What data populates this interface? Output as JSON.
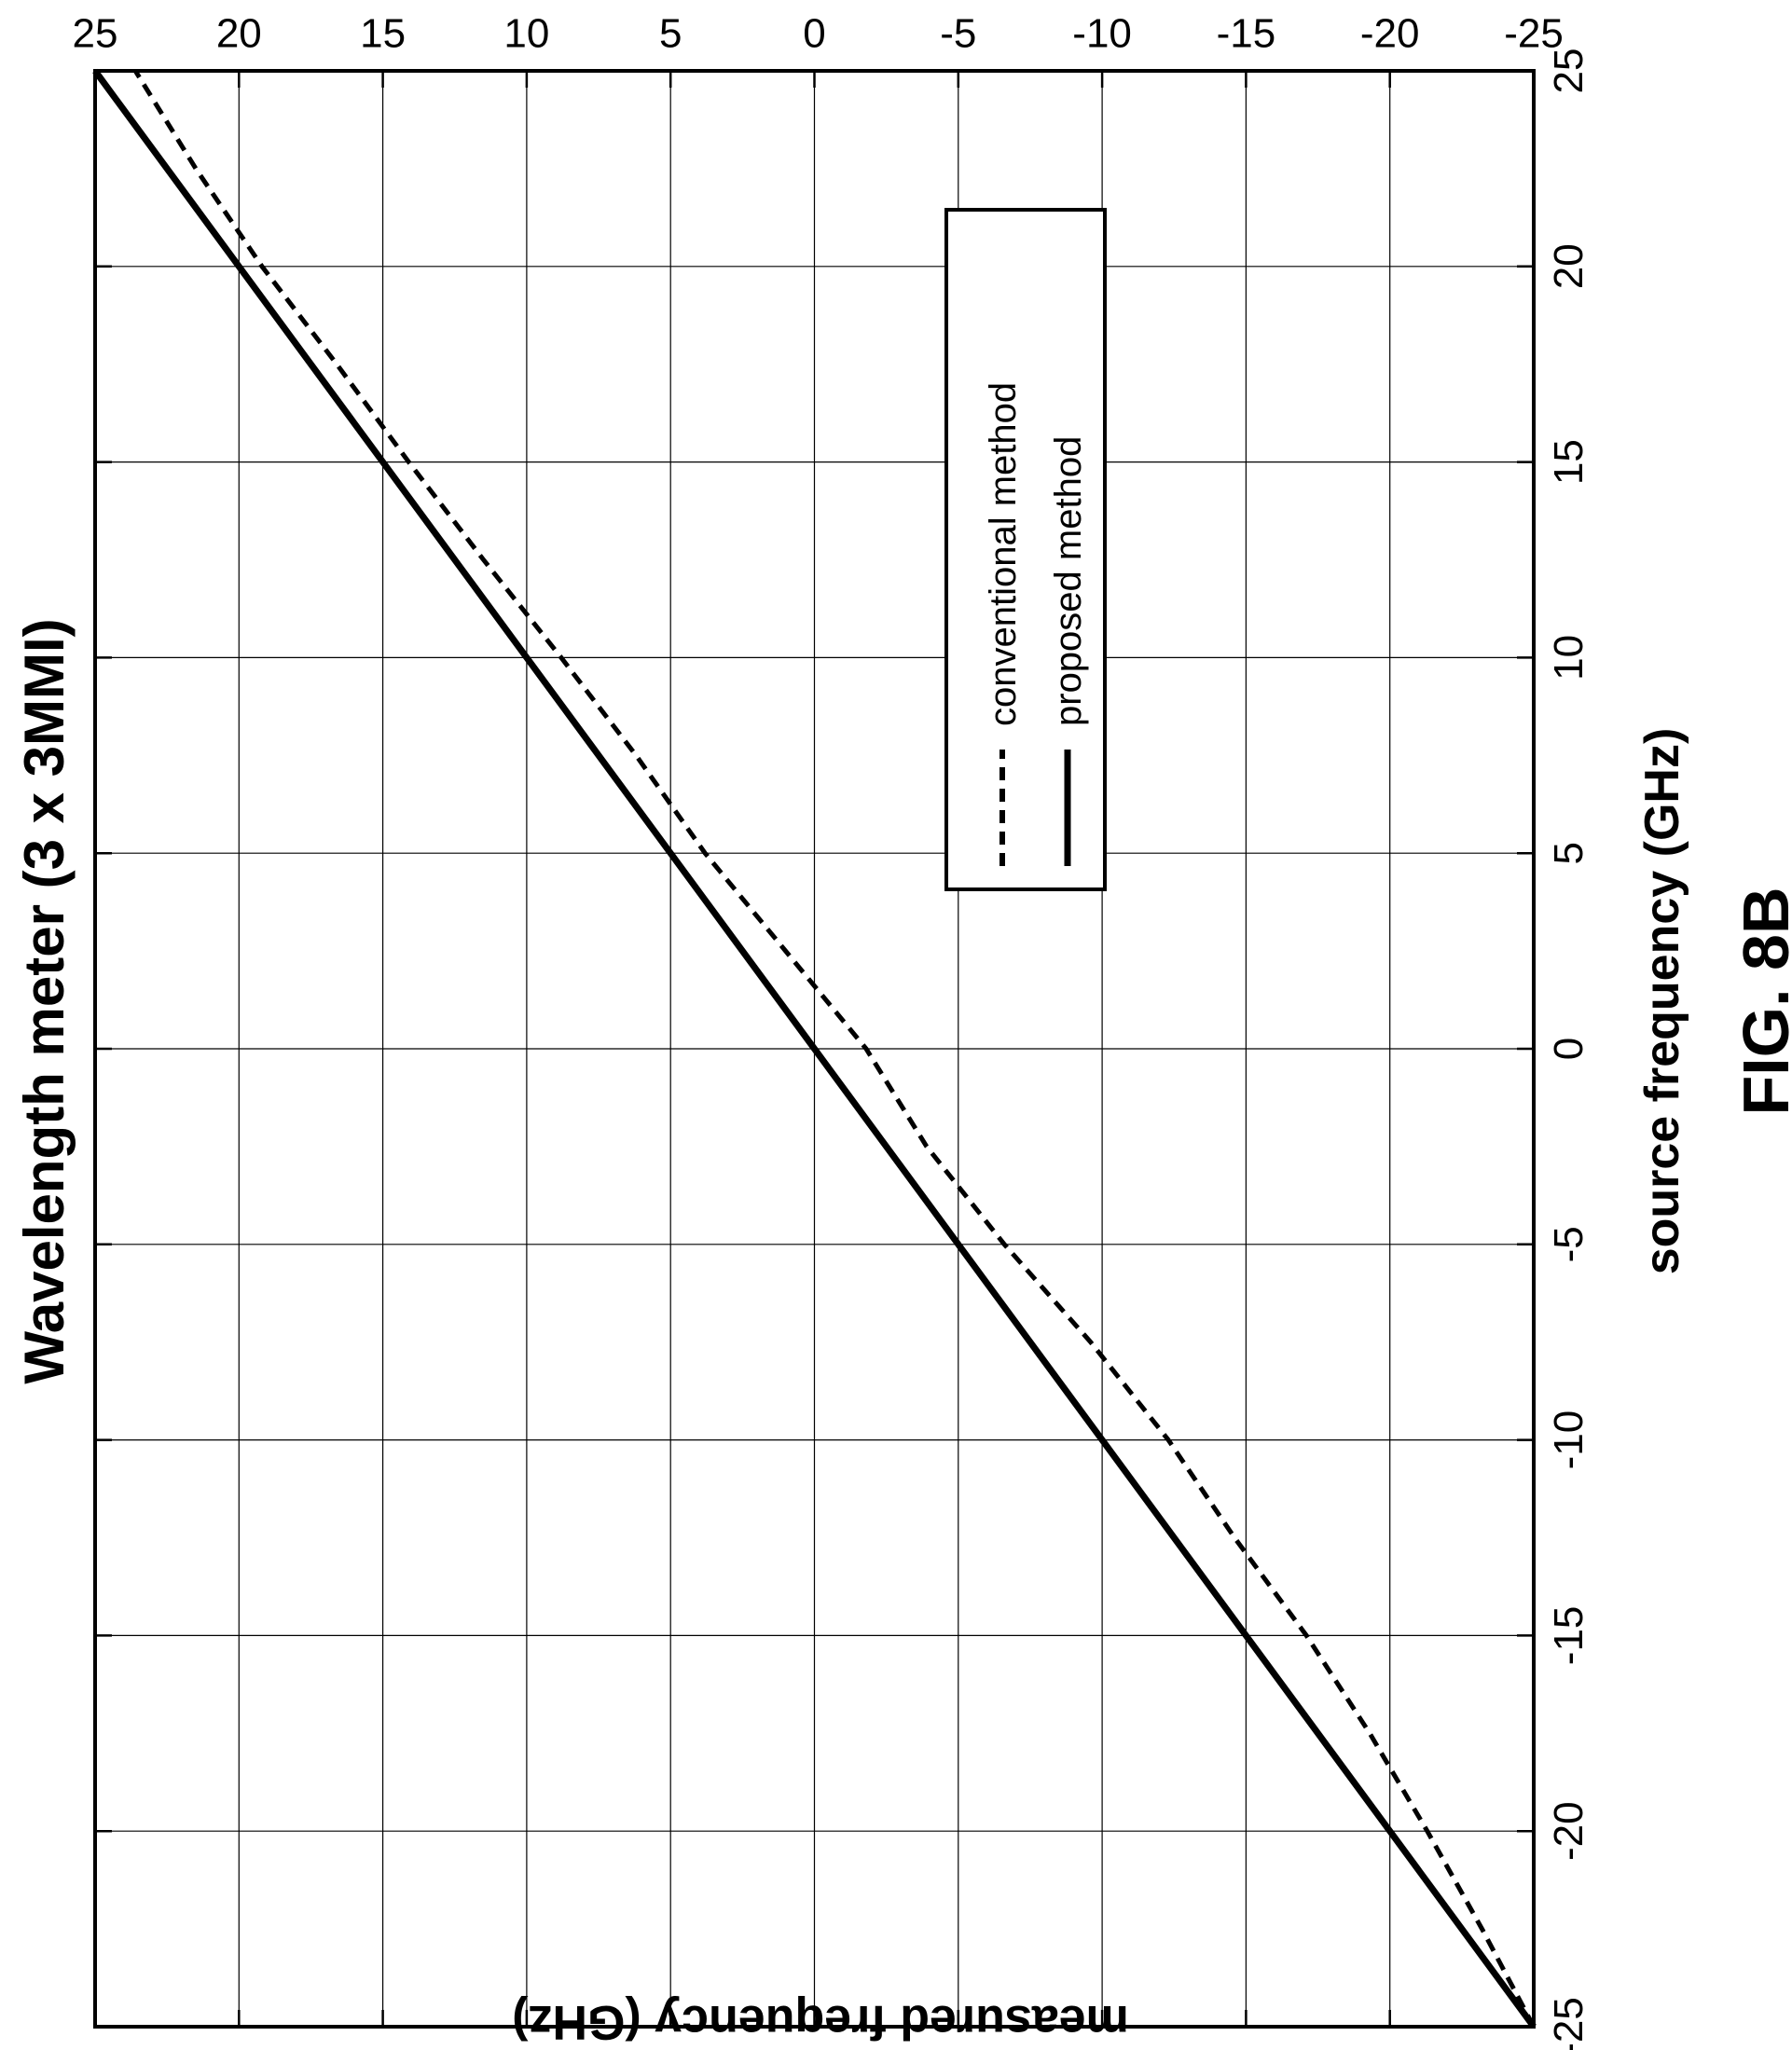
{
  "chart_data": {
    "type": "line",
    "title": "Wavelength meter (3 x 3MMI)",
    "xlabel": "source frequency (GHz)",
    "ylabel": "measured frequency (GHz)",
    "figure_label": "FIG. 8B",
    "xlim": [
      -25,
      25
    ],
    "ylim": [
      -25,
      25
    ],
    "xticks": [
      "-25",
      "-20",
      "-15",
      "-10",
      "-5",
      "0",
      "5",
      "10",
      "15",
      "20",
      "25"
    ],
    "yticks": [
      "-25",
      "-20",
      "-15",
      "-10",
      "-5",
      "0",
      "5",
      "10",
      "15",
      "20",
      "25"
    ],
    "grid": true,
    "legend_position": "top-right",
    "series": [
      {
        "name": "conventional method",
        "style": "dashed",
        "x": [
          -25,
          -22.5,
          -20,
          -17.5,
          -15,
          -12.5,
          -10,
          -7.5,
          -5,
          -2.5,
          0,
          2.5,
          5,
          7.5,
          10,
          12.5,
          15,
          17.5,
          20,
          22.5,
          25
        ],
        "y": [
          -25,
          -23.2,
          -21.3,
          -19.3,
          -17.1,
          -14.6,
          -12.3,
          -9.6,
          -6.6,
          -3.9,
          -1.8,
          1.0,
          3.8,
          6.2,
          8.8,
          11.5,
          14.1,
          16.6,
          19.2,
          21.5,
          23.6
        ]
      },
      {
        "name": "proposed method",
        "style": "solid",
        "x": [
          -25,
          -20,
          -15,
          -10,
          -5,
          0,
          5,
          10,
          15,
          20,
          25
        ],
        "y": [
          -25,
          -20,
          -15,
          -10,
          -5,
          0,
          5,
          10,
          15,
          20,
          25
        ]
      }
    ]
  }
}
